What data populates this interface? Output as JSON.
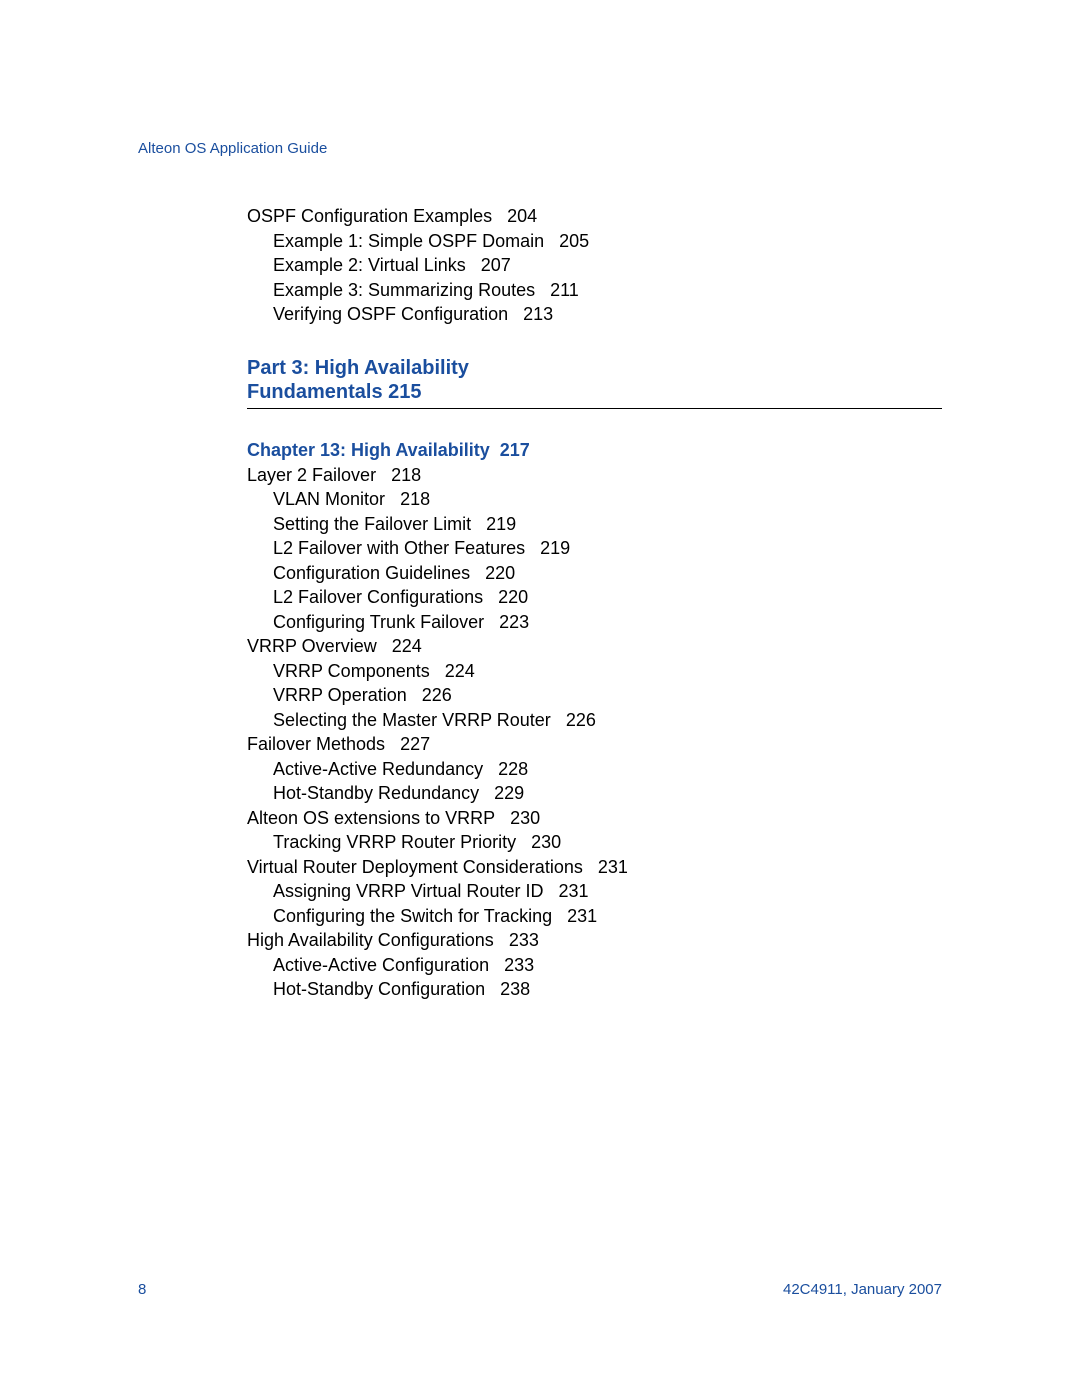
{
  "header": "Alteon OS Application Guide",
  "section1": {
    "entries": [
      {
        "title": "OSPF Configuration Examples",
        "page": "204",
        "indent": 0
      },
      {
        "title": "Example 1: Simple OSPF Domain",
        "page": "205",
        "indent": 1
      },
      {
        "title": "Example 2: Virtual Links",
        "page": "207",
        "indent": 1
      },
      {
        "title": "Example 3: Summarizing Routes",
        "page": "211",
        "indent": 1
      },
      {
        "title": "Verifying OSPF Configuration",
        "page": "213",
        "indent": 1
      }
    ]
  },
  "part": {
    "line1": "Part 3: High Availability",
    "line2": "Fundamentals 215"
  },
  "chapter": {
    "title": "Chapter 13: High Availability",
    "page": "217"
  },
  "section2": {
    "entries": [
      {
        "title": "Layer 2 Failover",
        "page": "218",
        "indent": 0
      },
      {
        "title": "VLAN Monitor",
        "page": "218",
        "indent": 1
      },
      {
        "title": "Setting the Failover Limit",
        "page": "219",
        "indent": 1
      },
      {
        "title": "L2 Failover with Other Features",
        "page": "219",
        "indent": 1
      },
      {
        "title": "Configuration Guidelines",
        "page": "220",
        "indent": 1
      },
      {
        "title": "L2 Failover Configurations",
        "page": "220",
        "indent": 1
      },
      {
        "title": "Configuring Trunk Failover",
        "page": "223",
        "indent": 1
      },
      {
        "title": "VRRP Overview",
        "page": "224",
        "indent": 0
      },
      {
        "title": "VRRP Components",
        "page": "224",
        "indent": 1
      },
      {
        "title": "VRRP Operation",
        "page": "226",
        "indent": 1
      },
      {
        "title": "Selecting the Master VRRP Router",
        "page": "226",
        "indent": 1
      },
      {
        "title": "Failover Methods",
        "page": "227",
        "indent": 0
      },
      {
        "title": "Active-Active Redundancy",
        "page": "228",
        "indent": 1
      },
      {
        "title": "Hot-Standby Redundancy",
        "page": "229",
        "indent": 1
      },
      {
        "title": "Alteon OS extensions to VRRP",
        "page": "230",
        "indent": 0
      },
      {
        "title": "Tracking VRRP Router Priority",
        "page": "230",
        "indent": 1
      },
      {
        "title": "Virtual Router Deployment Considerations",
        "page": "231",
        "indent": 0
      },
      {
        "title": "Assigning VRRP Virtual Router ID",
        "page": "231",
        "indent": 1
      },
      {
        "title": "Configuring the Switch for Tracking",
        "page": "231",
        "indent": 1
      },
      {
        "title": "High Availability Configurations",
        "page": "233",
        "indent": 0
      },
      {
        "title": "Active-Active Configuration",
        "page": "233",
        "indent": 1
      },
      {
        "title": "Hot-Standby Configuration",
        "page": "238",
        "indent": 1
      }
    ]
  },
  "footer": {
    "pageNumber": "8",
    "docRef": "42C4911, January 2007"
  },
  "style": {
    "link_color": "#1a4e9e",
    "text_color": "#000000",
    "background_color": "#ffffff",
    "body_fontsize": 18,
    "heading_fontsize": 20,
    "header_fontsize": 15
  }
}
